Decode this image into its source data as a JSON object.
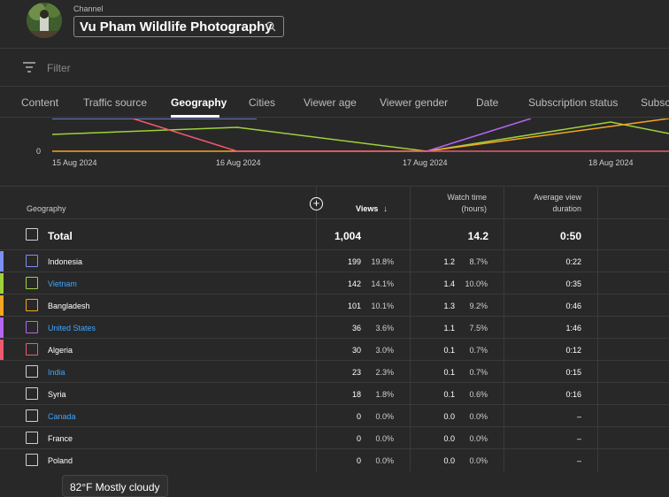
{
  "header": {
    "channel_label": "Channel",
    "channel_name": "Vu Pham Wildlife Photography"
  },
  "filter": {
    "placeholder": "Filter"
  },
  "tabs": [
    {
      "label": "Content"
    },
    {
      "label": "Traffic source"
    },
    {
      "label": "Geography",
      "active": true
    },
    {
      "label": "Cities"
    },
    {
      "label": "Viewer age"
    },
    {
      "label": "Viewer gender"
    },
    {
      "label": "Date"
    },
    {
      "label": "Subscription status"
    },
    {
      "label": "Subscr"
    }
  ],
  "chart_data": {
    "type": "line",
    "y_tick_label": "0",
    "x_tick_labels": [
      "15 Aug 2024",
      "16 Aug 2024",
      "17 Aug 2024",
      "18 Aug 2024"
    ],
    "series_colors": [
      "#7c8ff5",
      "#9ed13a",
      "#f4a522",
      "#b565f2",
      "#ef5a6f"
    ]
  },
  "table": {
    "headers": {
      "geography": "Geography",
      "views": "Views",
      "watch_time_line1": "Watch time",
      "watch_time_line2": "(hours)",
      "avg_line1": "Average view",
      "avg_line2": "duration"
    },
    "total": {
      "label": "Total",
      "views": "1,004",
      "watch": "14.2",
      "avg": "0:50"
    },
    "rows": [
      {
        "name": "Indonesia",
        "link": false,
        "color": "#7c8ff5",
        "views": "199",
        "views_pct": "19.8%",
        "watch": "1.2",
        "watch_pct": "8.7%",
        "avg": "0:22"
      },
      {
        "name": "Vietnam",
        "link": true,
        "color": "#9ed13a",
        "views": "142",
        "views_pct": "14.1%",
        "watch": "1.4",
        "watch_pct": "10.0%",
        "avg": "0:35"
      },
      {
        "name": "Bangladesh",
        "link": false,
        "color": "#f4a522",
        "views": "101",
        "views_pct": "10.1%",
        "watch": "1.3",
        "watch_pct": "9.2%",
        "avg": "0:46"
      },
      {
        "name": "United States",
        "link": true,
        "color": "#b565f2",
        "views": "36",
        "views_pct": "3.6%",
        "watch": "1.1",
        "watch_pct": "7.5%",
        "avg": "1:46"
      },
      {
        "name": "Algeria",
        "link": false,
        "color": "#ef5a6f",
        "views": "30",
        "views_pct": "3.0%",
        "watch": "0.1",
        "watch_pct": "0.7%",
        "avg": "0:12"
      },
      {
        "name": "India",
        "link": true,
        "color": "",
        "views": "23",
        "views_pct": "2.3%",
        "watch": "0.1",
        "watch_pct": "0.7%",
        "avg": "0:15"
      },
      {
        "name": "Syria",
        "link": false,
        "color": "",
        "views": "18",
        "views_pct": "1.8%",
        "watch": "0.1",
        "watch_pct": "0.6%",
        "avg": "0:16"
      },
      {
        "name": "Canada",
        "link": true,
        "color": "",
        "views": "0",
        "views_pct": "0.0%",
        "watch": "0.0",
        "watch_pct": "0.0%",
        "avg": "–"
      },
      {
        "name": "France",
        "link": false,
        "color": "",
        "views": "0",
        "views_pct": "0.0%",
        "watch": "0.0",
        "watch_pct": "0.0%",
        "avg": "–"
      },
      {
        "name": "Poland",
        "link": false,
        "color": "",
        "views": "0",
        "views_pct": "0.0%",
        "watch": "0.0",
        "watch_pct": "0.0%",
        "avg": "–"
      }
    ]
  },
  "weather": {
    "text": "82°F Mostly cloudy"
  }
}
